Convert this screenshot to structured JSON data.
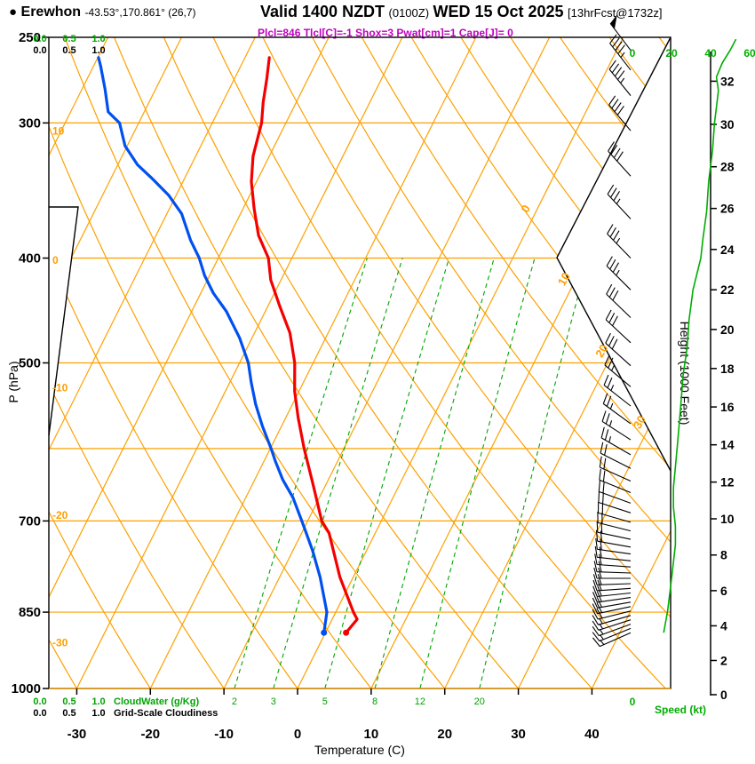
{
  "header": {
    "bullet": "●",
    "station": "Erewhon",
    "location": "-43.53°,170.861° (26,7)",
    "valid_prefix": "Valid 1400 NZDT",
    "valid_zulu": "(0100Z)",
    "valid_date": "WED 15 Oct 2025",
    "forecast_tag": "[13hrFcst@1732z]",
    "indices": "Plcl=846 Tlcl[C]=-1 Shox=3 Pwat[cm]=1 Cape[J]= 0"
  },
  "colors": {
    "grid_orange": "#fda000",
    "mixing_green": "#00a400",
    "speed_green": "#00ae00",
    "temperature_red": "#f40000",
    "dewpoint_blue": "#0050f0",
    "indices_magenta": "#c000c0",
    "black": "#000000"
  },
  "chart_data": {
    "type": "skewt_log_p_sounding",
    "title": "Valid 1400 NZDT (0100Z) WED 15 Oct 2025 [13hrFcst@1732z]",
    "station": "Erewhon",
    "pressure_axis": {
      "label": "P (hPa)",
      "scale": "log",
      "range": [
        1000,
        250
      ],
      "ticks": [
        250,
        300,
        400,
        500,
        700,
        850,
        1000
      ]
    },
    "temperature_axis": {
      "label": "Temperature (C)",
      "ticks": [
        -30,
        -20,
        -10,
        0,
        10,
        20,
        30,
        40
      ],
      "skew_slope": 0.5
    },
    "height_axis": {
      "label": "Height (1000 Feet)",
      "units": "kft",
      "ticks": [
        0,
        2,
        4,
        6,
        8,
        10,
        12,
        14,
        16,
        18,
        20,
        22,
        24,
        26,
        28,
        30,
        32
      ]
    },
    "speed_axis": {
      "label": "Speed (kt)",
      "ticks": [
        0,
        20,
        40,
        60
      ]
    },
    "cloudwater_axis": {
      "label": "CloudWater (g/Kg)",
      "ticks": [
        "0.0",
        "0.5",
        "1.0"
      ]
    },
    "cloudiness_axis": {
      "label": "Grid-Scale Cloudiness",
      "ticks": [
        "0.0",
        "0.5",
        "1.0"
      ]
    },
    "background": {
      "isobars": [
        300,
        400,
        500,
        600,
        700,
        850,
        1000
      ],
      "isotherms": {
        "start": -70,
        "end": 40,
        "step": 10,
        "labeled": [
          0,
          10,
          20,
          30
        ]
      },
      "dry_adiabats": {
        "start": -30,
        "end": 140,
        "step": 10,
        "labeled": [
          10,
          0,
          -10,
          -20,
          -30
        ]
      },
      "mixing_ratio_lines": [
        2,
        3,
        5,
        8,
        12,
        20
      ]
    },
    "temperature_profile": [
      [
        888,
        2.8
      ],
      [
        863,
        3.4
      ],
      [
        850,
        2.4
      ],
      [
        789,
        -1.8
      ],
      [
        718,
        -6.3
      ],
      [
        700,
        -8.1
      ],
      [
        647,
        -11.8
      ],
      [
        600,
        -15.4
      ],
      [
        562,
        -18.3
      ],
      [
        531,
        -20.6
      ],
      [
        500,
        -22.5
      ],
      [
        469,
        -25.2
      ],
      [
        443,
        -28.4
      ],
      [
        419,
        -31.4
      ],
      [
        400,
        -33.2
      ],
      [
        381,
        -36.1
      ],
      [
        360,
        -38.5
      ],
      [
        340,
        -40.7
      ],
      [
        322,
        -42.2
      ],
      [
        300,
        -43.3
      ],
      [
        287,
        -44.5
      ],
      [
        273,
        -45.6
      ],
      [
        261,
        -46.7
      ]
    ],
    "dewpoint_profile": [
      [
        888,
        -0.2
      ],
      [
        850,
        -1.2
      ],
      [
        789,
        -4.5
      ],
      [
        746,
        -7.3
      ],
      [
        718,
        -9.4
      ],
      [
        700,
        -10.8
      ],
      [
        666,
        -13.6
      ],
      [
        641,
        -16.2
      ],
      [
        617,
        -18.4
      ],
      [
        600,
        -19.9
      ],
      [
        572,
        -22.6
      ],
      [
        546,
        -25.0
      ],
      [
        521,
        -27.1
      ],
      [
        500,
        -28.8
      ],
      [
        474,
        -31.7
      ],
      [
        448,
        -35.3
      ],
      [
        431,
        -38.3
      ],
      [
        415,
        -40.7
      ],
      [
        400,
        -42.6
      ],
      [
        385,
        -45.0
      ],
      [
        364,
        -48.0
      ],
      [
        350,
        -51.0
      ],
      [
        337,
        -54.6
      ],
      [
        328,
        -57.3
      ],
      [
        315,
        -60.3
      ],
      [
        300,
        -62.6
      ],
      [
        293,
        -64.9
      ],
      [
        279,
        -66.9
      ],
      [
        266,
        -69.0
      ],
      [
        261,
        -69.9
      ]
    ],
    "wind_profile_p_kt_dir": [
      [
        888,
        15,
        246
      ],
      [
        880,
        16,
        248
      ],
      [
        872,
        16,
        250
      ],
      [
        864,
        17,
        252
      ],
      [
        856,
        17,
        254
      ],
      [
        848,
        18,
        256
      ],
      [
        840,
        18,
        258
      ],
      [
        832,
        18,
        260
      ],
      [
        824,
        19,
        262
      ],
      [
        816,
        19,
        264
      ],
      [
        808,
        19,
        266
      ],
      [
        800,
        20,
        268
      ],
      [
        791,
        20,
        270
      ],
      [
        782,
        20,
        272
      ],
      [
        772,
        21,
        274
      ],
      [
        762,
        21,
        276
      ],
      [
        751,
        21,
        278
      ],
      [
        740,
        22,
        280
      ],
      [
        728,
        22,
        282
      ],
      [
        715,
        22,
        284
      ],
      [
        702,
        22,
        286
      ],
      [
        688,
        21,
        288
      ],
      [
        674,
        21,
        290
      ],
      [
        659,
        21,
        292
      ],
      [
        643,
        22,
        294
      ],
      [
        626,
        22,
        297
      ],
      [
        608,
        23,
        300
      ],
      [
        589,
        24,
        303
      ],
      [
        569,
        25,
        306
      ],
      [
        548,
        26,
        308
      ],
      [
        526,
        27,
        310
      ],
      [
        503,
        28,
        312
      ],
      [
        479,
        29,
        313
      ],
      [
        454,
        31,
        314
      ],
      [
        428,
        33,
        315
      ],
      [
        400,
        35,
        316
      ],
      [
        368,
        37,
        317
      ],
      [
        336,
        40,
        318
      ],
      [
        305,
        42,
        320
      ],
      [
        283,
        44,
        321
      ],
      [
        268,
        47,
        322
      ],
      [
        257,
        51,
        323
      ]
    ],
    "speed_profile_p_kt": [
      [
        888,
        16
      ],
      [
        868,
        17
      ],
      [
        848,
        18
      ],
      [
        820,
        19
      ],
      [
        792,
        20
      ],
      [
        764,
        21
      ],
      [
        736,
        22
      ],
      [
        708,
        22
      ],
      [
        680,
        21
      ],
      [
        652,
        21
      ],
      [
        624,
        22
      ],
      [
        596,
        23
      ],
      [
        568,
        24
      ],
      [
        540,
        25
      ],
      [
        512,
        26
      ],
      [
        484,
        28
      ],
      [
        456,
        29
      ],
      [
        428,
        31
      ],
      [
        400,
        35
      ],
      [
        385,
        36
      ],
      [
        362,
        38
      ],
      [
        340,
        39
      ],
      [
        318,
        41
      ],
      [
        300,
        42
      ],
      [
        290,
        43
      ],
      [
        280,
        44
      ],
      [
        272,
        43
      ],
      [
        264,
        46
      ],
      [
        257,
        50
      ],
      [
        251,
        53
      ]
    ]
  }
}
